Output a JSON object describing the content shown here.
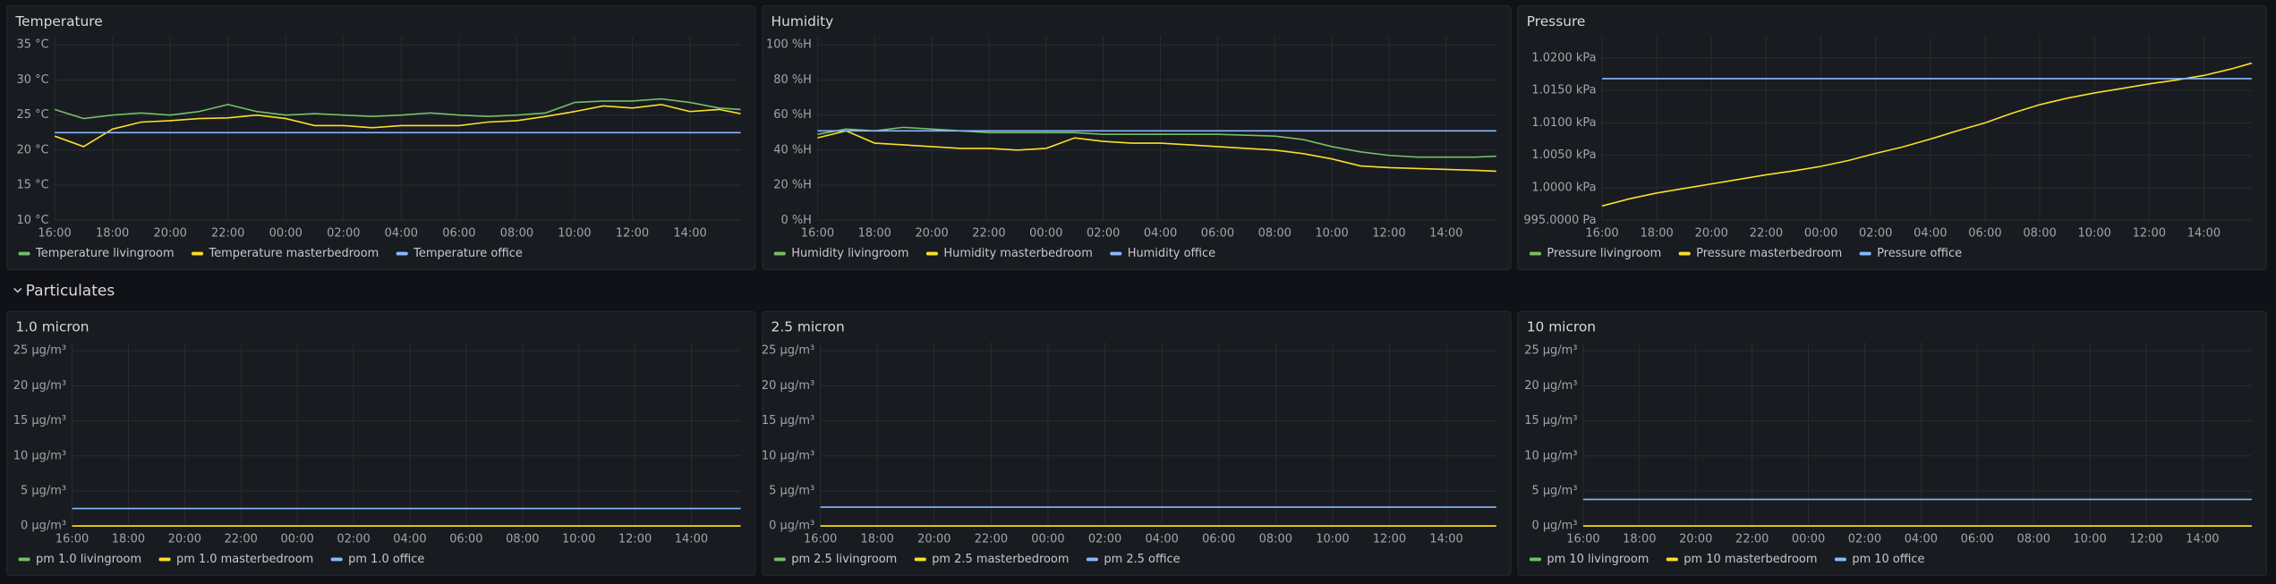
{
  "page": {
    "row_title": "Particulates"
  },
  "chart_data": [
    {
      "type": "line",
      "title": "Temperature",
      "grid": true,
      "legend": "bottom",
      "x": [
        "16:00",
        "17:00",
        "18:00",
        "19:00",
        "20:00",
        "21:00",
        "22:00",
        "23:00",
        "00:00",
        "01:00",
        "02:00",
        "03:00",
        "04:00",
        "05:00",
        "06:00",
        "07:00",
        "08:00",
        "09:00",
        "10:00",
        "11:00",
        "12:00",
        "13:00",
        "14:00",
        "15:00",
        "15:45"
      ],
      "xlim": [
        "16:00",
        "15:45"
      ],
      "xticks": [
        "16:00",
        "18:00",
        "20:00",
        "22:00",
        "00:00",
        "02:00",
        "04:00",
        "06:00",
        "08:00",
        "10:00",
        "12:00",
        "14:00"
      ],
      "ylim": [
        10,
        35
      ],
      "yticks": [
        {
          "value": 10,
          "label": "10 °C"
        },
        {
          "value": 15,
          "label": "15 °C"
        },
        {
          "value": 20,
          "label": "20 °C"
        },
        {
          "value": 25,
          "label": "25 °C"
        },
        {
          "value": 30,
          "label": "30 °C"
        },
        {
          "value": 35,
          "label": "35 °C"
        }
      ],
      "series": [
        {
          "name": "Temperature livingroom",
          "color": "#73bf69",
          "values": [
            25.8,
            24.5,
            25,
            25.3,
            25,
            25.5,
            26.5,
            25.5,
            25,
            25.2,
            25,
            24.8,
            25,
            25.3,
            25,
            24.8,
            25,
            25.3,
            26.8,
            27,
            27,
            27.3,
            26.8,
            26,
            25.8
          ]
        },
        {
          "name": "Temperature masterbedroom",
          "color": "#fade2a",
          "values": [
            22,
            20.5,
            23,
            24,
            24.2,
            24.5,
            24.6,
            25,
            24.5,
            23.5,
            23.5,
            23.2,
            23.5,
            23.5,
            23.5,
            24,
            24.2,
            24.8,
            25.5,
            26.3,
            26,
            26.5,
            25.5,
            25.8,
            25.2
          ]
        },
        {
          "name": "Temperature office",
          "color": "#8ab8ff",
          "values": [
            22.5,
            22.5,
            22.5,
            22.5,
            22.5,
            22.5,
            22.5,
            22.5,
            22.5,
            22.5,
            22.5,
            22.5,
            22.5,
            22.5,
            22.5,
            22.5,
            22.5,
            22.5,
            22.5,
            22.5,
            22.5,
            22.5,
            22.5,
            22.5,
            22.5
          ]
        }
      ]
    },
    {
      "type": "line",
      "title": "Humidity",
      "grid": true,
      "legend": "bottom",
      "x": [
        "16:00",
        "17:00",
        "18:00",
        "19:00",
        "20:00",
        "21:00",
        "22:00",
        "23:00",
        "00:00",
        "01:00",
        "02:00",
        "03:00",
        "04:00",
        "05:00",
        "06:00",
        "07:00",
        "08:00",
        "09:00",
        "10:00",
        "11:00",
        "12:00",
        "13:00",
        "14:00",
        "15:00",
        "15:45"
      ],
      "xlim": [
        "16:00",
        "15:45"
      ],
      "xticks": [
        "16:00",
        "18:00",
        "20:00",
        "22:00",
        "00:00",
        "02:00",
        "04:00",
        "06:00",
        "08:00",
        "10:00",
        "12:00",
        "14:00"
      ],
      "ylim": [
        0,
        100
      ],
      "yticks": [
        {
          "value": 0,
          "label": "0 %H"
        },
        {
          "value": 20,
          "label": "20 %H"
        },
        {
          "value": 40,
          "label": "40 %H"
        },
        {
          "value": 60,
          "label": "60 %H"
        },
        {
          "value": 80,
          "label": "80 %H"
        },
        {
          "value": 100,
          "label": "100 %H"
        }
      ],
      "series": [
        {
          "name": "Humidity livingroom",
          "color": "#73bf69",
          "values": [
            49,
            52,
            51,
            53,
            52,
            51,
            50,
            50,
            50,
            50,
            49,
            49,
            49,
            49,
            49,
            48.5,
            48,
            46,
            42,
            39,
            37,
            36,
            36,
            36,
            36.5
          ]
        },
        {
          "name": "Humidity masterbedroom",
          "color": "#fade2a",
          "values": [
            47,
            51,
            44,
            43,
            42,
            41,
            41,
            40,
            41,
            47,
            45,
            44,
            44,
            43,
            42,
            41,
            40,
            38,
            35,
            31,
            30,
            29.5,
            29,
            28.5,
            28
          ]
        },
        {
          "name": "Humidity office",
          "color": "#8ab8ff",
          "values": [
            51,
            51,
            51,
            51,
            51,
            51,
            51,
            51,
            51,
            51,
            51,
            51,
            51,
            51,
            51,
            51,
            51,
            51,
            51,
            51,
            51,
            51,
            51,
            51,
            51
          ]
        }
      ]
    },
    {
      "type": "line",
      "title": "Pressure",
      "grid": true,
      "legend": "bottom",
      "x": [
        "16:00",
        "17:00",
        "18:00",
        "19:00",
        "20:00",
        "21:00",
        "22:00",
        "23:00",
        "00:00",
        "01:00",
        "02:00",
        "03:00",
        "04:00",
        "05:00",
        "06:00",
        "07:00",
        "08:00",
        "09:00",
        "10:00",
        "11:00",
        "12:00",
        "13:00",
        "14:00",
        "15:00",
        "15:45"
      ],
      "xlim": [
        "16:00",
        "15:45"
      ],
      "xticks": [
        "16:00",
        "18:00",
        "20:00",
        "22:00",
        "00:00",
        "02:00",
        "04:00",
        "06:00",
        "08:00",
        "10:00",
        "12:00",
        "14:00"
      ],
      "ylim": [
        995,
        1022
      ],
      "yticks": [
        {
          "value": 995,
          "label": "995.0000 Pa"
        },
        {
          "value": 1000,
          "label": "1.0000 kPa"
        },
        {
          "value": 1005,
          "label": "1.0050 kPa"
        },
        {
          "value": 1010,
          "label": "1.0100 kPa"
        },
        {
          "value": 1015,
          "label": "1.0150 kPa"
        },
        {
          "value": 1020,
          "label": "1.0200 kPa"
        }
      ],
      "series": [
        {
          "name": "Pressure livingroom",
          "color": "#73bf69",
          "values": [
            null,
            null,
            null,
            null,
            null,
            null,
            null,
            null,
            null,
            null,
            null,
            null,
            null,
            null,
            null,
            null,
            null,
            null,
            null,
            null,
            null,
            null,
            null,
            null,
            null
          ]
        },
        {
          "name": "Pressure masterbedroom",
          "color": "#fade2a",
          "values": [
            997.2,
            998.3,
            999.2,
            999.9,
            1000.6,
            1001.3,
            1002,
            1002.6,
            1003.3,
            1004.2,
            1005.3,
            1006.3,
            1007.5,
            1008.8,
            1010,
            1011.5,
            1012.8,
            1013.8,
            1014.6,
            1015.3,
            1016,
            1016.6,
            1017.3,
            1018.3,
            1019.2
          ]
        },
        {
          "name": "Pressure office",
          "color": "#8ab8ff",
          "values": [
            1016.8,
            1016.8,
            1016.8,
            1016.8,
            1016.8,
            1016.8,
            1016.8,
            1016.8,
            1016.8,
            1016.8,
            1016.8,
            1016.8,
            1016.8,
            1016.8,
            1016.8,
            1016.8,
            1016.8,
            1016.8,
            1016.8,
            1016.8,
            1016.8,
            1016.8,
            1016.8,
            1016.8,
            1016.8
          ]
        }
      ]
    },
    {
      "type": "line",
      "title": "1.0 micron",
      "grid": true,
      "legend": "bottom",
      "x": [
        "16:00",
        "15:45"
      ],
      "xlim": [
        "16:00",
        "15:45"
      ],
      "xticks": [
        "16:00",
        "18:00",
        "20:00",
        "22:00",
        "00:00",
        "02:00",
        "04:00",
        "06:00",
        "08:00",
        "10:00",
        "12:00",
        "14:00"
      ],
      "ylim": [
        0,
        25
      ],
      "yticks": [
        {
          "value": 0,
          "label": "0 µg/m³"
        },
        {
          "value": 5,
          "label": "5 µg/m³"
        },
        {
          "value": 10,
          "label": "10 µg/m³"
        },
        {
          "value": 15,
          "label": "15 µg/m³"
        },
        {
          "value": 20,
          "label": "20 µg/m³"
        },
        {
          "value": 25,
          "label": "25 µg/m³"
        }
      ],
      "series": [
        {
          "name": "pm 1.0 livingroom",
          "color": "#73bf69",
          "values": [
            0,
            0
          ]
        },
        {
          "name": "pm 1.0 masterbedroom",
          "color": "#fade2a",
          "values": [
            0,
            0
          ]
        },
        {
          "name": "pm 1.0 office",
          "color": "#8ab8ff",
          "values": [
            2.5,
            2.5
          ]
        }
      ]
    },
    {
      "type": "line",
      "title": "2.5 micron",
      "grid": true,
      "legend": "bottom",
      "x": [
        "16:00",
        "15:45"
      ],
      "xlim": [
        "16:00",
        "15:45"
      ],
      "xticks": [
        "16:00",
        "18:00",
        "20:00",
        "22:00",
        "00:00",
        "02:00",
        "04:00",
        "06:00",
        "08:00",
        "10:00",
        "12:00",
        "14:00"
      ],
      "ylim": [
        0,
        25
      ],
      "yticks": [
        {
          "value": 0,
          "label": "0 µg/m³"
        },
        {
          "value": 5,
          "label": "5 µg/m³"
        },
        {
          "value": 10,
          "label": "10 µg/m³"
        },
        {
          "value": 15,
          "label": "15 µg/m³"
        },
        {
          "value": 20,
          "label": "20 µg/m³"
        },
        {
          "value": 25,
          "label": "25 µg/m³"
        }
      ],
      "series": [
        {
          "name": "pm 2.5 livingroom",
          "color": "#73bf69",
          "values": [
            0,
            0
          ]
        },
        {
          "name": "pm 2.5 masterbedroom",
          "color": "#fade2a",
          "values": [
            0,
            0
          ]
        },
        {
          "name": "pm 2.5 office",
          "color": "#8ab8ff",
          "values": [
            2.7,
            2.7
          ]
        }
      ]
    },
    {
      "type": "line",
      "title": "10 micron",
      "grid": true,
      "legend": "bottom",
      "x": [
        "16:00",
        "15:45"
      ],
      "xlim": [
        "16:00",
        "15:45"
      ],
      "xticks": [
        "16:00",
        "18:00",
        "20:00",
        "22:00",
        "00:00",
        "02:00",
        "04:00",
        "06:00",
        "08:00",
        "10:00",
        "12:00",
        "14:00"
      ],
      "ylim": [
        0,
        25
      ],
      "yticks": [
        {
          "value": 0,
          "label": "0 µg/m³"
        },
        {
          "value": 5,
          "label": "5 µg/m³"
        },
        {
          "value": 10,
          "label": "10 µg/m³"
        },
        {
          "value": 15,
          "label": "15 µg/m³"
        },
        {
          "value": 20,
          "label": "20 µg/m³"
        },
        {
          "value": 25,
          "label": "25 µg/m³"
        }
      ],
      "series": [
        {
          "name": "pm 10 livingroom",
          "color": "#73bf69",
          "values": [
            0,
            0
          ]
        },
        {
          "name": "pm 10 masterbedroom",
          "color": "#fade2a",
          "values": [
            0,
            0
          ]
        },
        {
          "name": "pm 10 office",
          "color": "#8ab8ff",
          "values": [
            3.8,
            3.8
          ]
        }
      ]
    }
  ]
}
